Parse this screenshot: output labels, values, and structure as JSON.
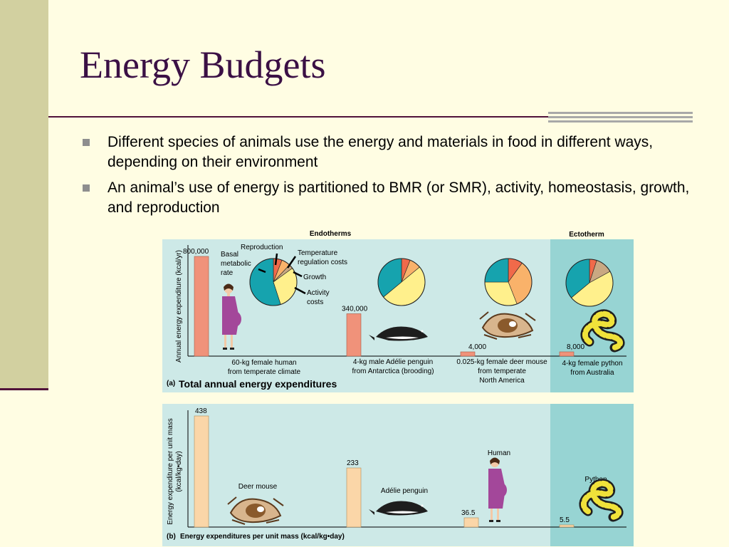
{
  "slide": {
    "title": "Energy Budgets",
    "bullets": [
      "Different species of animals use the energy and materials in food in different ways, depending on their environment",
      "An animal’s use of energy is partitioned to BMR (or SMR), activity, homeostasis, growth, and reproduction"
    ]
  },
  "colors": {
    "background": "#fffde3",
    "left_band": "#d2d0a0",
    "accent_line": "#50123a",
    "title": "#3b1045",
    "panel": "#cde9e7",
    "ectotherm_panel": "#97d4d3",
    "bar_a": "#f0927a",
    "bar_b": "#fbd6a8",
    "basal_metabolic_rate": "#16a3ae",
    "reproduction": "#f06a4a",
    "temperature_regulation": "#f9b26a",
    "growth": "#c9a882",
    "activity": "#fff08c"
  },
  "chart_data": [
    {
      "type": "bar",
      "panel": "(a)",
      "title": "Total annual energy expenditures",
      "ylabel": "Annual energy expenditure (kcal/yr)",
      "group_labels": [
        "Endotherms",
        "Ectotherm"
      ],
      "categories": [
        "60-kg female human from temperate climate",
        "4-kg male Adélie penguin from Antarctica (brooding)",
        "0.025-kg female deer mouse from temperate North America",
        "4-kg female python from Australia"
      ],
      "category_lines": [
        [
          "60-kg female human",
          "from temperate climate"
        ],
        [
          "4-kg male Adélie penguin",
          "from Antarctica (brooding)"
        ],
        [
          "0.025-kg female deer mouse",
          "from temperate",
          "North America"
        ],
        [
          "4-kg female python",
          "from Australia"
        ]
      ],
      "values": [
        800000,
        340000,
        4000,
        8000
      ],
      "value_labels": [
        "800,000",
        "340,000",
        "4,000",
        "8,000"
      ],
      "ylim": [
        0,
        800000
      ],
      "grid": false,
      "pie_labels": {
        "basal_lines": [
          "Basal",
          "metabolic",
          "rate"
        ],
        "reproduction": "Reproduction",
        "temperature_lines": [
          "Temperature",
          "regulation costs"
        ],
        "growth": "Growth",
        "activity_lines": [
          "Activity",
          "costs"
        ]
      },
      "pies": [
        {
          "name": "human",
          "slices": [
            {
              "component": "reproduction",
              "value": 0.06
            },
            {
              "component": "temperature_regulation",
              "value": 0.06
            },
            {
              "component": "growth",
              "value": 0.03
            },
            {
              "component": "activity",
              "value": 0.3
            },
            {
              "component": "basal_metabolic_rate",
              "value": 0.55
            }
          ]
        },
        {
          "name": "penguin",
          "slices": [
            {
              "component": "reproduction",
              "value": 0.06
            },
            {
              "component": "temperature_regulation",
              "value": 0.08
            },
            {
              "component": "activity",
              "value": 0.5
            },
            {
              "component": "basal_metabolic_rate",
              "value": 0.36
            }
          ]
        },
        {
          "name": "deer_mouse",
          "slices": [
            {
              "component": "reproduction",
              "value": 0.1
            },
            {
              "component": "temperature_regulation",
              "value": 0.34
            },
            {
              "component": "activity",
              "value": 0.31
            },
            {
              "component": "basal_metabolic_rate",
              "value": 0.25
            }
          ]
        },
        {
          "name": "python",
          "slices": [
            {
              "component": "reproduction",
              "value": 0.05
            },
            {
              "component": "growth",
              "value": 0.12
            },
            {
              "component": "activity",
              "value": 0.47
            },
            {
              "component": "basal_metabolic_rate",
              "value": 0.36
            }
          ]
        }
      ]
    },
    {
      "type": "bar",
      "panel": "(b)",
      "title": "Energy expenditures per unit mass (kcal/kg•day)",
      "ylabel": "Energy expenditure per unit mass (kcal/kg•day)",
      "ylabel_lines": [
        "Energy expenditure per unit mass",
        "(kcal/kg•day)"
      ],
      "categories": [
        "Deer mouse",
        "Adélie penguin",
        "Human",
        "Python"
      ],
      "values": [
        438,
        233,
        36.5,
        5.5
      ],
      "value_labels": [
        "438",
        "233",
        "36.5",
        "5.5"
      ],
      "ylim": [
        0,
        438
      ],
      "grid": false
    }
  ]
}
